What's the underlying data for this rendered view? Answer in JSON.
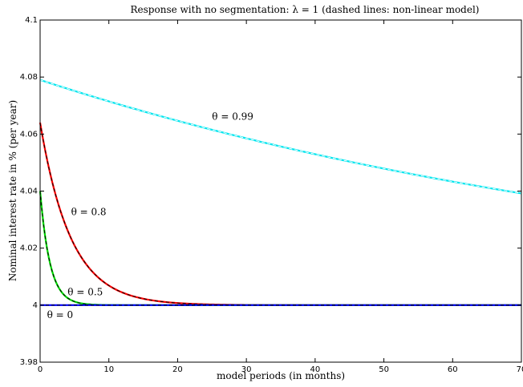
{
  "chart_data": {
    "type": "line",
    "title": "Response with no segmentation: λ = 1 (dashed lines: non-linear model)",
    "xlabel": "model periods (in months)",
    "ylabel": "Nominal interest rate in % (per year)",
    "xlim": [
      0,
      70
    ],
    "ylim": [
      3.98,
      4.1
    ],
    "xticks": [
      0,
      10,
      20,
      30,
      40,
      50,
      60,
      70
    ],
    "yticks": [
      3.98,
      4,
      4.02,
      4.04,
      4.06,
      4.08,
      4.1
    ],
    "ytick_labels": [
      "3.98",
      "4",
      "4.02",
      "4.04",
      "4.06",
      "4.08",
      "4.1"
    ],
    "grid": false,
    "series": [
      {
        "theta": 0.99,
        "start": 4.079,
        "end": 4.0392,
        "color": "#00e5ee",
        "dash_color": "#ffffff"
      },
      {
        "theta": 0.8,
        "start": 4.064,
        "color": "#ff0000",
        "dash_color": "#000000"
      },
      {
        "theta": 0.5,
        "start": 4.04,
        "color": "#00dd00",
        "dash_color": "#000000"
      },
      {
        "theta": 0.0,
        "start": 4.0,
        "color": "#0000ff",
        "dash_color": "#000000"
      }
    ],
    "annotations": [
      {
        "text": "θ = 0.99",
        "x": 25,
        "y": 4.065
      },
      {
        "text": "θ = 0.8",
        "x": 4.5,
        "y": 4.0315
      },
      {
        "text": "θ = 0.5",
        "x": 4,
        "y": 4.0035
      },
      {
        "text": "θ = 0",
        "x": 1,
        "y": 3.9955
      }
    ]
  }
}
